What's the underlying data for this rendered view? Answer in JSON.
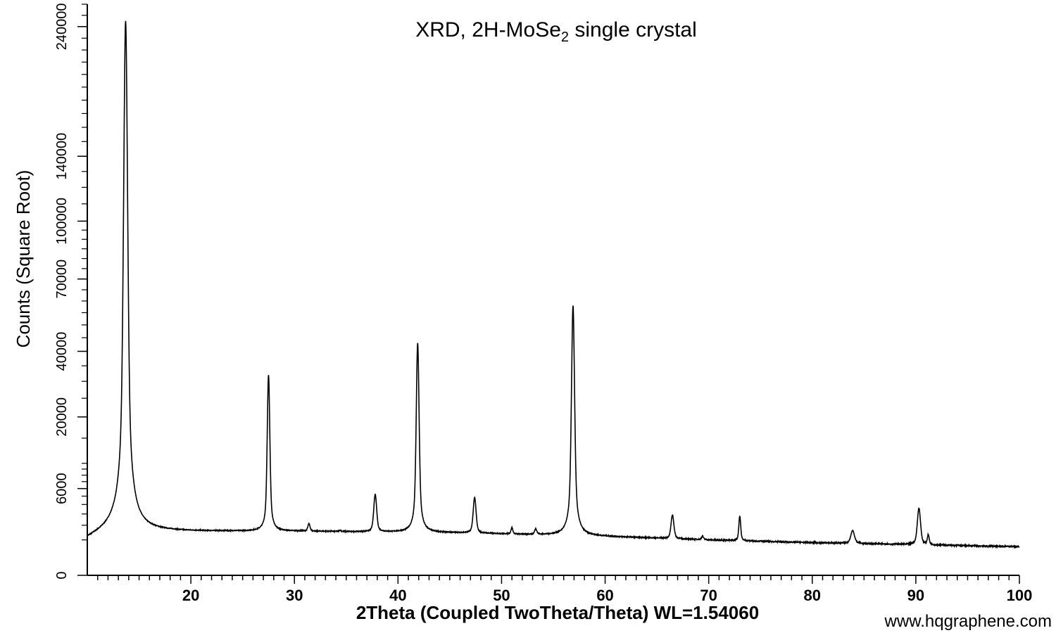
{
  "chart_data": {
    "type": "line",
    "title_main": "XRD, 2H-MoSe",
    "title_sub": "2",
    "title_rest": " single crystal",
    "xlabel": "2Theta (Coupled TwoTheta/Theta) WL=1.54060",
    "ylabel": "Counts (Square Root)",
    "y_scale": "sqrt",
    "xlim": [
      10,
      100
    ],
    "ylim": [
      0,
      260000
    ],
    "x_ticks": [
      20,
      30,
      40,
      50,
      60,
      70,
      80,
      90,
      100
    ],
    "x_tick_labels": [
      "20",
      "30",
      "40",
      "50",
      "60",
      "70",
      "80",
      "90",
      "100"
    ],
    "y_ticks": [
      0,
      6000,
      20000,
      40000,
      70000,
      100000,
      140000,
      240000
    ],
    "y_tick_labels": [
      "0",
      "6000",
      "20000",
      "40000",
      "70000",
      "100000",
      "140000",
      "240000"
    ],
    "background": [
      [
        10,
        1000
      ],
      [
        12.5,
        1600
      ],
      [
        20,
        1550
      ],
      [
        30,
        1550
      ],
      [
        45,
        1450
      ],
      [
        60,
        1200
      ],
      [
        70,
        1000
      ],
      [
        80,
        850
      ],
      [
        90,
        750
      ],
      [
        100,
        650
      ]
    ],
    "peaks": [
      {
        "x": 13.7,
        "y": 245000,
        "w": 0.18
      },
      {
        "x": 27.5,
        "y": 32000,
        "w": 0.12
      },
      {
        "x": 31.4,
        "y": 2100,
        "w": 0.12
      },
      {
        "x": 34.4,
        "y": 1600,
        "w": 0.12
      },
      {
        "x": 37.8,
        "y": 5200,
        "w": 0.15
      },
      {
        "x": 41.9,
        "y": 43000,
        "w": 0.13
      },
      {
        "x": 47.4,
        "y": 4800,
        "w": 0.15
      },
      {
        "x": 51.0,
        "y": 1800,
        "w": 0.1
      },
      {
        "x": 53.3,
        "y": 1700,
        "w": 0.12
      },
      {
        "x": 56.9,
        "y": 58000,
        "w": 0.14
      },
      {
        "x": 66.5,
        "y": 2900,
        "w": 0.15
      },
      {
        "x": 69.4,
        "y": 1200,
        "w": 0.12
      },
      {
        "x": 73.0,
        "y": 2800,
        "w": 0.1
      },
      {
        "x": 83.9,
        "y": 1600,
        "w": 0.2
      },
      {
        "x": 90.3,
        "y": 3600,
        "w": 0.16
      },
      {
        "x": 91.2,
        "y": 1300,
        "w": 0.1
      }
    ]
  },
  "watermark": "www.hqgraphene.com"
}
